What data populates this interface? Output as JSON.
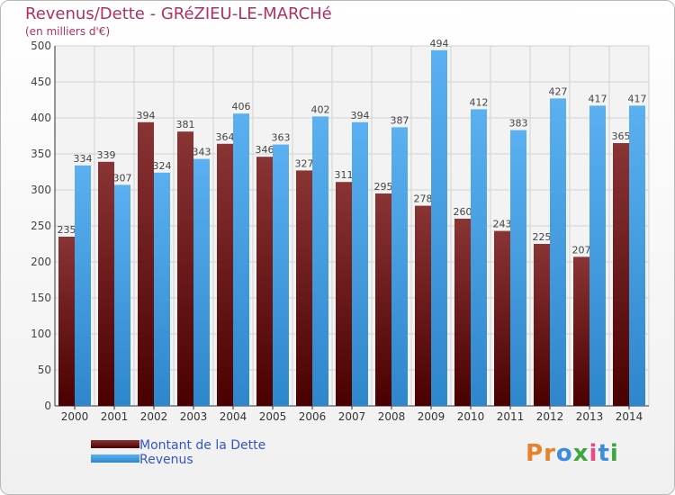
{
  "header": {
    "title": "Revenus/Dette - GRéZIEU-LE-MARCHé",
    "subtitle": "(en milliers d'€)"
  },
  "colors": {
    "debt": "#6e1e1e",
    "revenue": "#4aa2e8",
    "title": "#b03060",
    "legend_text": "#3355cc"
  },
  "legend": [
    {
      "label": "Montant de la Dette",
      "color": "#6e1e1e"
    },
    {
      "label": "Revenus",
      "color": "#4aa2e8"
    }
  ],
  "logo": {
    "letters": [
      "P",
      "r",
      "o",
      "x",
      "i",
      "t",
      "i"
    ],
    "colors": [
      "#e8822a",
      "#e8822a",
      "#3c8ddc",
      "#3fa63f",
      "#e84a8a",
      "#3c8ddc",
      "#3fa63f"
    ]
  },
  "chart_data": {
    "type": "bar",
    "title": "Revenus/Dette - GRéZIEU-LE-MARCHé",
    "subtitle": "(en milliers d'€)",
    "categories": [
      "2000",
      "2001",
      "2002",
      "2003",
      "2004",
      "2005",
      "2006",
      "2007",
      "2008",
      "2009",
      "2010",
      "2011",
      "2012",
      "2013",
      "2014"
    ],
    "series": [
      {
        "name": "Montant de la Dette",
        "values": [
          235,
          339,
          394,
          381,
          364,
          346,
          327,
          311,
          295,
          278,
          260,
          243,
          225,
          207,
          365
        ]
      },
      {
        "name": "Revenus",
        "values": [
          334,
          307,
          324,
          343,
          406,
          363,
          402,
          394,
          387,
          494,
          412,
          383,
          427,
          417,
          417
        ]
      }
    ],
    "ylim": [
      0,
      500
    ],
    "yticks": [
      0,
      50,
      100,
      150,
      200,
      250,
      300,
      350,
      400,
      450,
      500
    ],
    "grid": true,
    "legend_position": "bottom-left"
  }
}
